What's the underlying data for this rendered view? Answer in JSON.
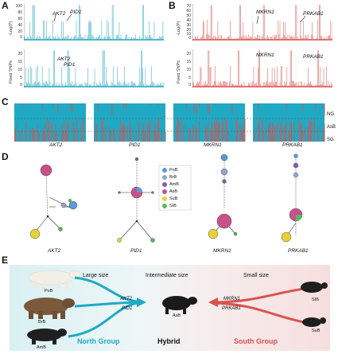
{
  "panels": {
    "a_letter": "A",
    "b_letter": "B",
    "c_letter": "C",
    "d_letter": "D",
    "e_letter": "E"
  },
  "manhattan_a": {
    "color": "#2aa7c0",
    "ylabel_top": "-Log(P)",
    "ylabel_bottom": "Fixed SNPs",
    "yticks_top": [
      "100",
      "80",
      "60",
      "40",
      "20",
      "0"
    ],
    "yticks_bottom": [
      "20",
      "15",
      "10",
      "5",
      "0"
    ],
    "gene1_top": "AKT2",
    "gene2_top": "PID1",
    "gene1_bottom": "AKT2",
    "gene2_bottom": "PID1"
  },
  "manhattan_b": {
    "color": "#d9534f",
    "ylabel_top": "-Log(P)",
    "ylabel_bottom": "Fixed SNPs",
    "yticks_top": [
      "70",
      "60",
      "50",
      "40",
      "30",
      "20",
      "10",
      "0"
    ],
    "yticks_bottom": [
      "20",
      "15",
      "10",
      "5",
      "0"
    ],
    "gene1_top": "MKRN1",
    "gene2_top": "PRKAB1",
    "gene1_bottom": "MKRN1",
    "gene2_bottom": "PRKAB1"
  },
  "haplotype": {
    "colors": {
      "north": "#1fa9c4",
      "south": "#d9534f"
    },
    "blocks": [
      "AKT2",
      "PID1",
      "MKRN1",
      "PRKAB1"
    ],
    "groups": [
      "NG",
      "AsB",
      "SG"
    ]
  },
  "networks": {
    "genes": [
      "AKT2",
      "PID1",
      "MKRN1",
      "PRKAB1"
    ],
    "legend": [
      {
        "label": "PoB",
        "color": "#5b9bd5"
      },
      {
        "label": "BrB",
        "color": "#8fa8c9"
      },
      {
        "label": "AmB",
        "color": "#7f5fb0"
      },
      {
        "label": "AsB",
        "color": "#c8518a"
      },
      {
        "label": "SuB",
        "color": "#e8d03a"
      },
      {
        "label": "SIB",
        "color": "#5cb85c"
      }
    ]
  },
  "panel_e": {
    "large_size": "Large size",
    "intermediate_size": "Intermediate size",
    "small_size": "Small size",
    "pob": "PoB",
    "brb": "BrB",
    "amb": "AmB",
    "asb": "AsB",
    "sib": "SIB",
    "sub": "SuB",
    "gene_left_1": "AKT2",
    "gene_left_2": "PID1",
    "gene_right_1": "MKRN1",
    "gene_right_2": "PRKAB1",
    "north_group": "North Group",
    "hybrid": "Hybrid",
    "south_group": "South Group",
    "north_color": "#1fa9c4",
    "south_color": "#d9534f"
  }
}
